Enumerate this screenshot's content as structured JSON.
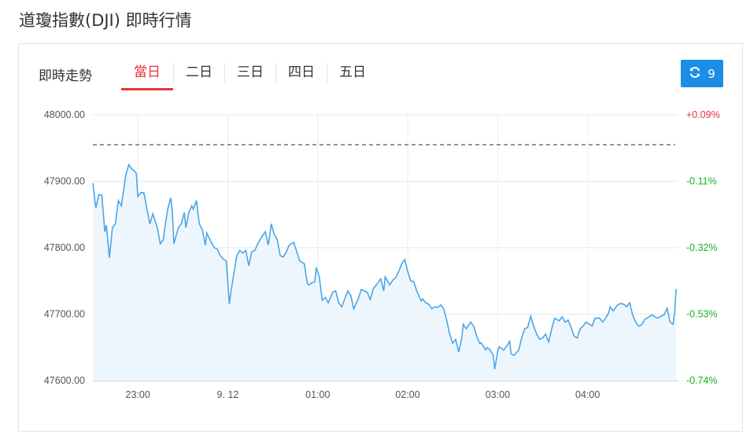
{
  "page_title": "道瓊指數(DJI) 即時行情",
  "section_label": "即時走勢",
  "tabs": [
    {
      "label": "當日",
      "active": true
    },
    {
      "label": "二日",
      "active": false
    },
    {
      "label": "三日",
      "active": false
    },
    {
      "label": "四日",
      "active": false
    },
    {
      "label": "五日",
      "active": false
    }
  ],
  "refresh_button": {
    "icon": "refresh-icon",
    "count": "9"
  },
  "colors": {
    "line": "#4aa6e8",
    "fill": "#eef6fd",
    "up": "#e8343a",
    "down": "#19b219",
    "accent": "#1a8ee6",
    "prev_close_line": "#555555"
  },
  "chart_data": {
    "type": "area",
    "ylim": [
      47600,
      48000
    ],
    "y_ticks": [
      "48000.00",
      "47900.00",
      "47800.00",
      "47700.00",
      "47600.00"
    ],
    "y_tick_values": [
      48000,
      47900,
      47800,
      47700,
      47600
    ],
    "y_right_ticks": [
      "+0.09%",
      "-0.11%",
      "-0.32%",
      "-0.53%",
      "-0.74%"
    ],
    "x_ticks": [
      {
        "label": "23:00",
        "time": "23:00"
      },
      {
        "label": "9. 12",
        "time": "00:00"
      },
      {
        "label": "01:00",
        "time": "01:00"
      },
      {
        "label": "02:00",
        "time": "02:00"
      },
      {
        "label": "03:00",
        "time": "03:00"
      },
      {
        "label": "04:00",
        "time": "04:00"
      }
    ],
    "xlim": [
      "22:30",
      "05:00"
    ],
    "previous_close": 47955,
    "grid": true,
    "series": [
      {
        "points": [
          [
            "22:30",
            47897
          ],
          [
            "22:32",
            47860
          ],
          [
            "22:34",
            47880
          ],
          [
            "22:36",
            47879
          ],
          [
            "22:38",
            47824
          ],
          [
            "22:39",
            47834
          ],
          [
            "22:41",
            47785
          ],
          [
            "22:43",
            47830
          ],
          [
            "22:45",
            47836
          ],
          [
            "22:47",
            47871
          ],
          [
            "22:49",
            47863
          ],
          [
            "22:52",
            47910
          ],
          [
            "22:54",
            47925
          ],
          [
            "22:56",
            47918
          ],
          [
            "22:57",
            47917
          ],
          [
            "22:59",
            47912
          ],
          [
            "23:00",
            47877
          ],
          [
            "23:02",
            47883
          ],
          [
            "23:04",
            47883
          ],
          [
            "23:06",
            47859
          ],
          [
            "23:08",
            47836
          ],
          [
            "23:10",
            47851
          ],
          [
            "23:13",
            47830
          ],
          [
            "23:15",
            47806
          ],
          [
            "23:17",
            47812
          ],
          [
            "23:18",
            47830
          ],
          [
            "23:20",
            47859
          ],
          [
            "23:22",
            47875
          ],
          [
            "23:23",
            47853
          ],
          [
            "23:24",
            47806
          ],
          [
            "23:27",
            47830
          ],
          [
            "23:29",
            47836
          ],
          [
            "23:31",
            47853
          ],
          [
            "23:32",
            47830
          ],
          [
            "23:34",
            47853
          ],
          [
            "23:36",
            47863
          ],
          [
            "23:37",
            47858
          ],
          [
            "23:39",
            47871
          ],
          [
            "23:41",
            47836
          ],
          [
            "23:43",
            47827
          ],
          [
            "23:45",
            47804
          ],
          [
            "23:46",
            47822
          ],
          [
            "23:49",
            47808
          ],
          [
            "23:51",
            47800
          ],
          [
            "23:53",
            47798
          ],
          [
            "23:55",
            47788
          ],
          [
            "23:57",
            47783
          ],
          [
            "23:59",
            47780
          ],
          [
            "00:01",
            47715
          ],
          [
            "00:02",
            47733
          ],
          [
            "00:04",
            47761
          ],
          [
            "00:06",
            47788
          ],
          [
            "00:08",
            47796
          ],
          [
            "00:10",
            47792
          ],
          [
            "00:12",
            47796
          ],
          [
            "00:14",
            47773
          ],
          [
            "00:16",
            47794
          ],
          [
            "00:18",
            47796
          ],
          [
            "00:20",
            47806
          ],
          [
            "00:23",
            47818
          ],
          [
            "00:25",
            47824
          ],
          [
            "00:27",
            47804
          ],
          [
            "00:29",
            47836
          ],
          [
            "00:31",
            47820
          ],
          [
            "00:33",
            47812
          ],
          [
            "00:35",
            47788
          ],
          [
            "00:37",
            47786
          ],
          [
            "00:39",
            47794
          ],
          [
            "00:41",
            47804
          ],
          [
            "00:44",
            47808
          ],
          [
            "00:46",
            47794
          ],
          [
            "00:48",
            47780
          ],
          [
            "00:51",
            47776
          ],
          [
            "00:53",
            47747
          ],
          [
            "00:54",
            47744
          ],
          [
            "00:56",
            47747
          ],
          [
            "00:58",
            47749
          ],
          [
            "00:59",
            47770
          ],
          [
            "01:01",
            47756
          ],
          [
            "01:03",
            47721
          ],
          [
            "01:05",
            47725
          ],
          [
            "01:07",
            47717
          ],
          [
            "01:10",
            47733
          ],
          [
            "01:12",
            47735
          ],
          [
            "01:14",
            47717
          ],
          [
            "01:16",
            47711
          ],
          [
            "01:18",
            47723
          ],
          [
            "01:20",
            47735
          ],
          [
            "01:22",
            47728
          ],
          [
            "01:24",
            47708
          ],
          [
            "01:27",
            47723
          ],
          [
            "01:29",
            47737
          ],
          [
            "01:31",
            47735
          ],
          [
            "01:33",
            47733
          ],
          [
            "01:35",
            47722
          ],
          [
            "01:37",
            47738
          ],
          [
            "01:40",
            47747
          ],
          [
            "01:42",
            47753
          ],
          [
            "01:44",
            47735
          ],
          [
            "01:45",
            47756
          ],
          [
            "01:48",
            47744
          ],
          [
            "01:50",
            47751
          ],
          [
            "01:52",
            47755
          ],
          [
            "01:54",
            47764
          ],
          [
            "01:56",
            47776
          ],
          [
            "01:58",
            47782
          ],
          [
            "02:00",
            47764
          ],
          [
            "02:02",
            47750
          ],
          [
            "02:04",
            47749
          ],
          [
            "02:06",
            47735
          ],
          [
            "02:09",
            47720
          ],
          [
            "02:10",
            47723
          ],
          [
            "02:12",
            47717
          ],
          [
            "02:14",
            47715
          ],
          [
            "02:16",
            47708
          ],
          [
            "02:18",
            47711
          ],
          [
            "02:20",
            47710
          ],
          [
            "02:22",
            47714
          ],
          [
            "02:24",
            47708
          ],
          [
            "02:26",
            47691
          ],
          [
            "02:28",
            47670
          ],
          [
            "02:30",
            47656
          ],
          [
            "02:32",
            47662
          ],
          [
            "02:34",
            47643
          ],
          [
            "02:36",
            47664
          ],
          [
            "02:37",
            47685
          ],
          [
            "02:39",
            47678
          ],
          [
            "02:42",
            47688
          ],
          [
            "02:44",
            47682
          ],
          [
            "02:46",
            47667
          ],
          [
            "02:48",
            47656
          ],
          [
            "02:49",
            47657
          ],
          [
            "02:52",
            47646
          ],
          [
            "02:53",
            47650
          ],
          [
            "02:55",
            47646
          ],
          [
            "02:57",
            47638
          ],
          [
            "02:58",
            47617
          ],
          [
            "03:00",
            47644
          ],
          [
            "03:01",
            47651
          ],
          [
            "03:04",
            47646
          ],
          [
            "03:06",
            47652
          ],
          [
            "03:08",
            47659
          ],
          [
            "03:09",
            47640
          ],
          [
            "03:11",
            47638
          ],
          [
            "03:14",
            47646
          ],
          [
            "03:16",
            47664
          ],
          [
            "03:18",
            47678
          ],
          [
            "03:20",
            47680
          ],
          [
            "03:22",
            47697
          ],
          [
            "03:24",
            47682
          ],
          [
            "03:26",
            47670
          ],
          [
            "03:28",
            47662
          ],
          [
            "03:30",
            47664
          ],
          [
            "03:32",
            47670
          ],
          [
            "03:34",
            47658
          ],
          [
            "03:36",
            47678
          ],
          [
            "03:38",
            47694
          ],
          [
            "03:41",
            47690
          ],
          [
            "03:43",
            47696
          ],
          [
            "03:45",
            47688
          ],
          [
            "03:47",
            47691
          ],
          [
            "03:49",
            47680
          ],
          [
            "03:51",
            47667
          ],
          [
            "03:53",
            47664
          ],
          [
            "03:55",
            47678
          ],
          [
            "03:57",
            47682
          ],
          [
            "03:59",
            47688
          ],
          [
            "04:01",
            47685
          ],
          [
            "04:03",
            47682
          ],
          [
            "04:05",
            47694
          ],
          [
            "04:08",
            47694
          ],
          [
            "04:10",
            47688
          ],
          [
            "04:12",
            47694
          ],
          [
            "04:14",
            47702
          ],
          [
            "04:15",
            47711
          ],
          [
            "04:17",
            47705
          ],
          [
            "04:20",
            47714
          ],
          [
            "04:22",
            47716
          ],
          [
            "04:24",
            47715
          ],
          [
            "04:26",
            47711
          ],
          [
            "04:28",
            47717
          ],
          [
            "04:30",
            47699
          ],
          [
            "04:32",
            47688
          ],
          [
            "04:34",
            47682
          ],
          [
            "04:36",
            47684
          ],
          [
            "04:38",
            47692
          ],
          [
            "04:41",
            47696
          ],
          [
            "04:43",
            47699
          ],
          [
            "04:45",
            47696
          ],
          [
            "04:47",
            47694
          ],
          [
            "04:49",
            47697
          ],
          [
            "04:51",
            47699
          ],
          [
            "04:53",
            47709
          ],
          [
            "04:55",
            47688
          ],
          [
            "04:57",
            47685
          ],
          [
            "04:58",
            47702
          ],
          [
            "04:59",
            47738
          ]
        ]
      }
    ]
  }
}
